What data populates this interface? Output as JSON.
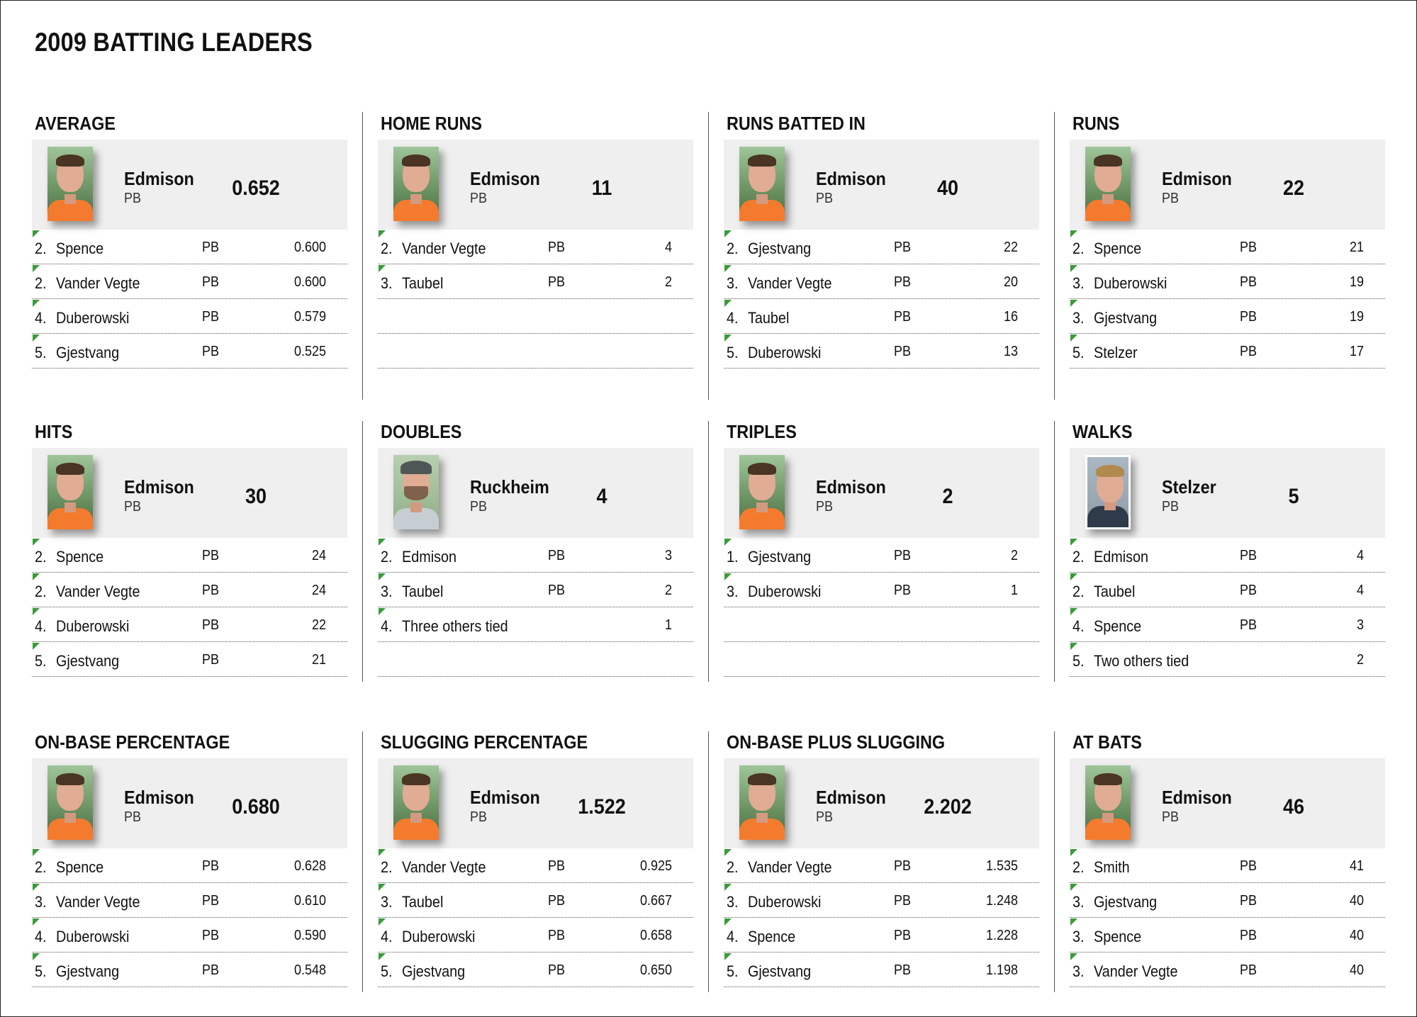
{
  "title": "2009 BATTING LEADERS",
  "categories": [
    {
      "id": "average",
      "title": "AVERAGE",
      "leader": {
        "name": "Edmison",
        "team": "PB",
        "value": "0.652",
        "photo": "player-photo-edmison"
      },
      "rows": [
        {
          "rank": "2.",
          "name": "Spence",
          "team": "PB",
          "value": "0.600"
        },
        {
          "rank": "2.",
          "name": "Vander Vegte",
          "team": "PB",
          "value": "0.600"
        },
        {
          "rank": "4.",
          "name": "Duberowski",
          "team": "PB",
          "value": "0.579"
        },
        {
          "rank": "5.",
          "name": "Gjestvang",
          "team": "PB",
          "value": "0.525"
        }
      ]
    },
    {
      "id": "home-runs",
      "title": "HOME RUNS",
      "leader": {
        "name": "Edmison",
        "team": "PB",
        "value": "11",
        "photo": "player-photo-edmison"
      },
      "rows": [
        {
          "rank": "2.",
          "name": "Vander Vegte",
          "team": "PB",
          "value": "4"
        },
        {
          "rank": "3.",
          "name": "Taubel",
          "team": "PB",
          "value": "2"
        },
        {
          "rank": "",
          "name": "",
          "team": "",
          "value": ""
        },
        {
          "rank": "",
          "name": "",
          "team": "",
          "value": ""
        }
      ]
    },
    {
      "id": "runs-batted-in",
      "title": "RUNS BATTED IN",
      "leader": {
        "name": "Edmison",
        "team": "PB",
        "value": "40",
        "photo": "player-photo-edmison"
      },
      "rows": [
        {
          "rank": "2.",
          "name": "Gjestvang",
          "team": "PB",
          "value": "22"
        },
        {
          "rank": "3.",
          "name": "Vander Vegte",
          "team": "PB",
          "value": "20"
        },
        {
          "rank": "4.",
          "name": "Taubel",
          "team": "PB",
          "value": "16"
        },
        {
          "rank": "5.",
          "name": "Duberowski",
          "team": "PB",
          "value": "13"
        }
      ]
    },
    {
      "id": "runs",
      "title": "RUNS",
      "leader": {
        "name": "Edmison",
        "team": "PB",
        "value": "22",
        "photo": "player-photo-edmison"
      },
      "rows": [
        {
          "rank": "2.",
          "name": "Spence",
          "team": "PB",
          "value": "21"
        },
        {
          "rank": "3.",
          "name": "Duberowski",
          "team": "PB",
          "value": "19"
        },
        {
          "rank": "3.",
          "name": "Gjestvang",
          "team": "PB",
          "value": "19"
        },
        {
          "rank": "5.",
          "name": "Stelzer",
          "team": "PB",
          "value": "17"
        }
      ]
    },
    {
      "id": "hits",
      "title": "HITS",
      "leader": {
        "name": "Edmison",
        "team": "PB",
        "value": "30",
        "photo": "player-photo-edmison"
      },
      "rows": [
        {
          "rank": "2.",
          "name": "Spence",
          "team": "PB",
          "value": "24"
        },
        {
          "rank": "2.",
          "name": "Vander Vegte",
          "team": "PB",
          "value": "24"
        },
        {
          "rank": "4.",
          "name": "Duberowski",
          "team": "PB",
          "value": "22"
        },
        {
          "rank": "5.",
          "name": "Gjestvang",
          "team": "PB",
          "value": "21"
        }
      ]
    },
    {
      "id": "doubles",
      "title": "DOUBLES",
      "leader": {
        "name": "Ruckheim",
        "team": "PB",
        "value": "4",
        "photo": "player-photo-ruckheim"
      },
      "rows": [
        {
          "rank": "2.",
          "name": "Edmison",
          "team": "PB",
          "value": "3"
        },
        {
          "rank": "3.",
          "name": "Taubel",
          "team": "PB",
          "value": "2"
        },
        {
          "rank": "4.",
          "name": "Three others tied",
          "team": "",
          "value": "1"
        },
        {
          "rank": "",
          "name": "",
          "team": "",
          "value": ""
        }
      ]
    },
    {
      "id": "triples",
      "title": "TRIPLES",
      "leader": {
        "name": "Edmison",
        "team": "PB",
        "value": "2",
        "photo": "player-photo-edmison"
      },
      "rows": [
        {
          "rank": "1.",
          "name": "Gjestvang",
          "team": "PB",
          "value": "2"
        },
        {
          "rank": "3.",
          "name": "Duberowski",
          "team": "PB",
          "value": "1"
        },
        {
          "rank": "",
          "name": "",
          "team": "",
          "value": ""
        },
        {
          "rank": "",
          "name": "",
          "team": "",
          "value": ""
        }
      ]
    },
    {
      "id": "walks",
      "title": "WALKS",
      "leader": {
        "name": "Stelzer",
        "team": "PB",
        "value": "5",
        "photo": "player-photo-stelzer"
      },
      "rows": [
        {
          "rank": "2.",
          "name": "Edmison",
          "team": "PB",
          "value": "4"
        },
        {
          "rank": "2.",
          "name": "Taubel",
          "team": "PB",
          "value": "4"
        },
        {
          "rank": "4.",
          "name": "Spence",
          "team": "PB",
          "value": "3"
        },
        {
          "rank": "5.",
          "name": "Two others tied",
          "team": "",
          "value": "2"
        }
      ]
    },
    {
      "id": "on-base-percentage",
      "title": "ON-BASE PERCENTAGE",
      "leader": {
        "name": "Edmison",
        "team": "PB",
        "value": "0.680",
        "photo": "player-photo-edmison"
      },
      "rows": [
        {
          "rank": "2.",
          "name": "Spence",
          "team": "PB",
          "value": "0.628"
        },
        {
          "rank": "3.",
          "name": "Vander Vegte",
          "team": "PB",
          "value": "0.610"
        },
        {
          "rank": "4.",
          "name": "Duberowski",
          "team": "PB",
          "value": "0.590"
        },
        {
          "rank": "5.",
          "name": "Gjestvang",
          "team": "PB",
          "value": "0.548"
        }
      ]
    },
    {
      "id": "slugging-percentage",
      "title": "SLUGGING PERCENTAGE",
      "leader": {
        "name": "Edmison",
        "team": "PB",
        "value": "1.522",
        "photo": "player-photo-edmison"
      },
      "rows": [
        {
          "rank": "2.",
          "name": "Vander Vegte",
          "team": "PB",
          "value": "0.925"
        },
        {
          "rank": "3.",
          "name": "Taubel",
          "team": "PB",
          "value": "0.667"
        },
        {
          "rank": "4.",
          "name": "Duberowski",
          "team": "PB",
          "value": "0.658"
        },
        {
          "rank": "5.",
          "name": "Gjestvang",
          "team": "PB",
          "value": "0.650"
        }
      ]
    },
    {
      "id": "on-base-plus-slugging",
      "title": "ON-BASE PLUS SLUGGING",
      "leader": {
        "name": "Edmison",
        "team": "PB",
        "value": "2.202",
        "photo": "player-photo-edmison"
      },
      "rows": [
        {
          "rank": "2.",
          "name": "Vander Vegte",
          "team": "PB",
          "value": "1.535"
        },
        {
          "rank": "3.",
          "name": "Duberowski",
          "team": "PB",
          "value": "1.248"
        },
        {
          "rank": "4.",
          "name": "Spence",
          "team": "PB",
          "value": "1.228"
        },
        {
          "rank": "5.",
          "name": "Gjestvang",
          "team": "PB",
          "value": "1.198"
        }
      ]
    },
    {
      "id": "at-bats",
      "title": "AT BATS",
      "leader": {
        "name": "Edmison",
        "team": "PB",
        "value": "46",
        "photo": "player-photo-edmison"
      },
      "rows": [
        {
          "rank": "2.",
          "name": "Smith",
          "team": "PB",
          "value": "41"
        },
        {
          "rank": "3.",
          "name": "Gjestvang",
          "team": "PB",
          "value": "40"
        },
        {
          "rank": "3.",
          "name": "Spence",
          "team": "PB",
          "value": "40"
        },
        {
          "rank": "3.",
          "name": "Vander Vegte",
          "team": "PB",
          "value": "40"
        }
      ]
    }
  ]
}
